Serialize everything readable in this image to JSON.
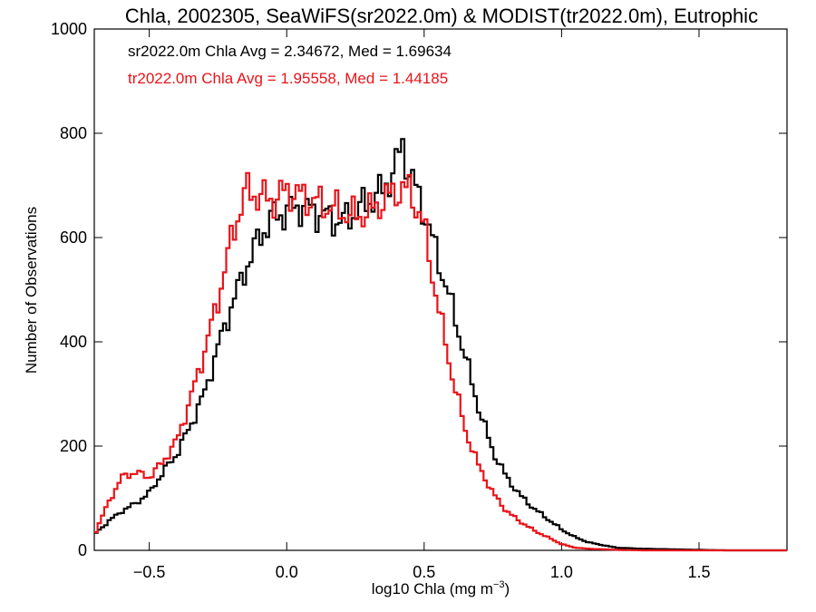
{
  "chart_data": {
    "type": "line",
    "title": "Chla, 2002305, SeaWiFS(sr2022.0m) & MODIST(tr2022.0m), Eutrophic",
    "xlabel": "log10 Chla (mg m",
    "xlabel_superscript": "−3",
    "xlabel_suffix": ")",
    "ylabel": "Number of Observations",
    "xlim": [
      -0.7,
      1.82
    ],
    "ylim": [
      0,
      1000
    ],
    "x_ticks": [
      -0.5,
      0.0,
      0.5,
      1.0,
      1.5
    ],
    "x_tick_labels": [
      "−0.5",
      "0.0",
      "0.5",
      "1.0",
      "1.5"
    ],
    "y_ticks": [
      0,
      200,
      400,
      600,
      800,
      1000
    ],
    "y_tick_labels": [
      "0",
      "200",
      "400",
      "600",
      "800",
      "1000"
    ],
    "grid": false,
    "step_style": "histogram-steps",
    "annotations": [
      {
        "text": "sr2022.0m Chla Avg = 2.34672, Med = 1.69634",
        "color": "#000000"
      },
      {
        "text": "tr2022.0m Chla Avg = 1.95558, Med = 1.44185",
        "color": "#e8141a"
      }
    ],
    "series": [
      {
        "color": "#000000",
        "x": [
          -0.7,
          -0.65,
          -0.6,
          -0.55,
          -0.5,
          -0.45,
          -0.4,
          -0.35,
          -0.3,
          -0.25,
          -0.2,
          -0.15,
          -0.1,
          -0.05,
          0.0,
          0.05,
          0.1,
          0.15,
          0.2,
          0.25,
          0.3,
          0.35,
          0.4,
          0.42,
          0.45,
          0.5,
          0.55,
          0.6,
          0.65,
          0.7,
          0.75,
          0.8,
          0.85,
          0.9,
          0.95,
          1.0,
          1.05,
          1.1,
          1.15,
          1.2,
          1.3,
          1.4,
          1.5,
          1.6,
          1.7,
          1.82
        ],
        "values": [
          30,
          55,
          75,
          90,
          110,
          150,
          185,
          240,
          300,
          390,
          470,
          540,
          600,
          640,
          650,
          660,
          650,
          640,
          630,
          650,
          670,
          690,
          740,
          780,
          720,
          650,
          560,
          470,
          370,
          270,
          190,
          140,
          105,
          80,
          60,
          40,
          25,
          15,
          10,
          5,
          3,
          2,
          1,
          0,
          0,
          0
        ]
      },
      {
        "color": "#e8141a",
        "x": [
          -0.7,
          -0.65,
          -0.6,
          -0.55,
          -0.5,
          -0.45,
          -0.4,
          -0.35,
          -0.3,
          -0.25,
          -0.2,
          -0.15,
          -0.1,
          -0.05,
          0.0,
          0.05,
          0.1,
          0.15,
          0.2,
          0.25,
          0.3,
          0.35,
          0.4,
          0.45,
          0.5,
          0.55,
          0.6,
          0.65,
          0.7,
          0.75,
          0.8,
          0.85,
          0.9,
          0.95,
          1.0,
          1.05,
          1.1,
          1.15,
          1.2,
          1.3,
          1.4,
          1.5,
          1.6,
          1.7,
          1.82
        ],
        "values": [
          30,
          90,
          140,
          150,
          140,
          170,
          210,
          290,
          380,
          480,
          600,
          690,
          680,
          670,
          690,
          680,
          670,
          660,
          650,
          640,
          650,
          670,
          690,
          690,
          620,
          470,
          340,
          230,
          160,
          110,
          75,
          55,
          38,
          25,
          12,
          5,
          3,
          2,
          1,
          0,
          0,
          0,
          0,
          0,
          0
        ]
      }
    ]
  }
}
